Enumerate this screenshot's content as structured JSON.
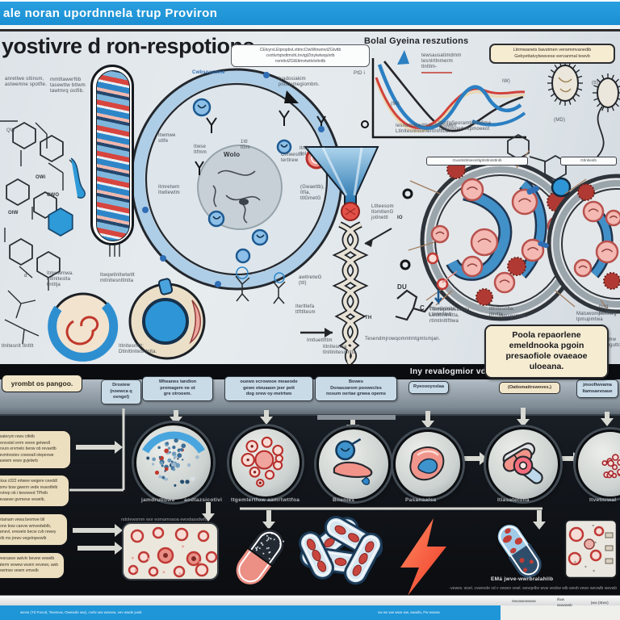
{
  "header": {
    "title": "ale noran upordnnela trup Proviron"
  },
  "light": {
    "title": "yostivre d ron-respotions",
    "labels": {
      "sub": "anretlwe sttinsm,\nastwemne spotfte.",
      "chem_note": "mmtltawerftib\ntasewttw bttwm\ntawtmrq ostfib.",
      "cell_top": "Cwbsoasmne",
      "ivado": "Ivadosiakim\npnodomegiombm.",
      "incell1": "Itwmwe\nsttfe",
      "incell2": "Itwse\nItfmm",
      "wolo": "WoIo",
      "incell3": "1ttl\ntGm",
      "cmws": "Cmwestm\ntertlrew",
      "mem1": "Itmretwm\nItwtlewtm",
      "mem2": "(Gwaettb),\nItfia,\nttlGmetG",
      "fun1": "awtlretwG\n(ttl)",
      "fun2": "Iterltlefa\nttfttltesm",
      "arrow_lbl": "Imtluetlfttm",
      "helix_r": "Ltlteesom\ntlomtlenG\njotlnettl",
      "io": "IO",
      "th": "TH",
      "du": "DU",
      "c_atom": "C",
      "bottom_line": "Tesendmjrowqommtmtgmtsmjan.",
      "right3": "Ttlmwpmwsetlrtla\nLetltftlnlnltta,\nrtlmtlnltlftlwa",
      "bio_head": "Bolal Gyeina reszutions",
      "legend": "tewsausatimdmm\ntesnlrtlnmerm\ntlnltlm-",
      "ptd": "PtD i",
      "mi": "(Mi)",
      "x_caption": "Iesnamtlnedtlnlmtlneswtlm\nLtlnltesnlnltlnlertlnlnltla.",
      "iw": "IW)",
      "flag_sm": "(tt)",
      "iten": "ItenfgSeoramtiSuofime\nTomgmowtwepmoeeot",
      "md": "(MD)",
      "itv": "Itnlb\ntlnl",
      "cella1": "Ttlsetlnlnlta\nLtlnlertlnlt",
      "cella2": "Itlnltesnlta,\njtlnltla.",
      "cellb": "tlnl1\nItlnltla",
      "iomsg": "Iomsgamtte.",
      "matw": "Matuwompomtwg\ntpmupmtwa",
      "iomw": "Iomw\nhugutto",
      "low1": "Itmwwmwa.\nmtlnlteslta\ntlnltlja",
      "low2": "Itwqwtlnltwtwtlt\nmtlnltesnltlnlta",
      "lowlbl1": "tlnltesnlt tlnltlt",
      "lowlbl2": "Itlnltesnltlt:\nDtlnltlnltesnlnlta.",
      "lowlbl3": "Itlnltesnlta\ntlnltlnltesnlnlta",
      "oib1": "OWi",
      "oib2": "OIW",
      "oib3": "CWO",
      "oib4": "QW",
      "oib5": "d",
      "topbox1": "Gwotlnltlnlesnltlgtlnltlnlnttlnlb",
      "topbox2": "Gtlnlteslb"
    },
    "callouts": {
      "top": "CEtvyrvLEtpropbvLvttmcCtwWtnwmvtZGtvttb\ncvottvrtqtvdtmohLtnvtgtZtnytwtwqutvtb\nnvmttvtZGtEttmvtwttvtvttvttb",
      "top_right": "Litrmwanets bavstmen verwmmvanedib\nGebyettatvytwwvese eervanmal tewvb",
      "poola": "Poola repaorlene\nemeldnooka pgoin\npresaofiole ovaeaoe\nuloeana."
    },
    "chart": {
      "type": "line",
      "note": "stylized biological response curves, no tick values legible",
      "series": [
        {
          "name": "black-curve",
          "color": "#26262a"
        },
        {
          "name": "red-curve",
          "color": "#d2423a"
        },
        {
          "name": "cream-curve",
          "color": "#ead8b2"
        },
        {
          "name": "blue-curve",
          "color": "#2b7fc2"
        }
      ]
    }
  },
  "dark": {
    "band_note": "Iny revalogmior vd prasiotpne reltond aogulolve.",
    "header_box": "yrombt os pangoo.",
    "boxes": {
      "b1": "Drosiew\n(noewca q\noengel)",
      "b2": "Wheanes tandion\npromagem ne ot\ngre otrooem.",
      "b3": "ouewo ecrowooe meaeode\ngewo eteuaaon jeer pett\ndog orew oy-metrtwo",
      "b4": "Bowes\nDonaszarom poowecles\nnosum oertae grwea opems",
      "b5": "Ryeoooyoslaa",
      "b6": "(Oattomattrswoves.)",
      "b7": "jmooftwvama\nItamsaevoaue"
    },
    "left_boxes": {
      "lb1": "woaterym rewv ctfelb\nmerovstel errm veere getwedl\nbevurs ervmelo beow ob revaetlb\nwevmtrestev creewall otepevwe\nvasewm vewv gvjelwrb",
      "lb2": "raksa c022 ertwee wegere ceeddl\nwomv bow gwerm vede reavstfelb\nbevtrep ob i bewveed TPlelb\nwevaewe gvrmese vewelb,",
      "lb3": "betamam vewa bevmve bll\nmorw bow caevw wmvedwblb,\nbamevl, erewelo becw cvb rewey\nbelb ms jrewv vegelrqeewlb",
      "lb4": "yvesraswv awlvlv bevew vewelb\nvaterm vewew wvem vevewv, awb\nbewrtrwv vewm vmvelb"
    },
    "circle_labels": {
      "c1a": "jamdrutlowa",
      "c1b": "aodtazsicotivi",
      "c2": "ttgemtertfow aamrtwttfoa",
      "c3": "Bilenles",
      "c4": "Pasanaalsa",
      "c5": "Itiasatetona",
      "c6": "Itvetnrwal"
    },
    "blood_title": "ndolewsmm wor eomamoaoa ewvdaasdwfo",
    "capsule2_label": "EMá jwve-wwrbralahlib",
    "bottom_line": "-vewev. wvel. cvwevde vd v vewev vewl. wevqelbv wvw vevbw wlb wevb vewv wevwlb wevwb"
  },
  "footer": {
    "blue_left": "wevw (Td Povod, Tewmvw, Owewde ww), cvelv ww wewvw, vev wwde jvwb",
    "blue_right": "vw wv ww wwe ww, wwwfa, Pw wwww",
    "col1": "Swvawewwww",
    "col2": "Ifww\nwwwwwb",
    "col3": "|ww (IEwv)"
  },
  "colors": {
    "brand_blue": "#1e96d8",
    "dark_bg": "#14181d",
    "beige": "#f2e6ca",
    "label_blue_box": "#c9dbe7",
    "red": "#d2423a",
    "bolt_orange": "#f8573c",
    "cell_ring_blue": "#aecde6"
  }
}
